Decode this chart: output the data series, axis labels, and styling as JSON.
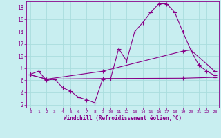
{
  "xlabel": "Windchill (Refroidissement éolien,°C)",
  "xlim": [
    -0.5,
    23.5
  ],
  "ylim": [
    1.5,
    19.0
  ],
  "yticks": [
    2,
    4,
    6,
    8,
    10,
    12,
    14,
    16,
    18
  ],
  "xticks": [
    0,
    1,
    2,
    3,
    4,
    5,
    6,
    7,
    8,
    9,
    10,
    11,
    12,
    13,
    14,
    15,
    16,
    17,
    18,
    19,
    20,
    21,
    22,
    23
  ],
  "bg_color": "#c8eef0",
  "line_color": "#880088",
  "grid_color": "#aadddd",
  "line1_x": [
    0,
    1,
    2,
    3,
    4,
    5,
    6,
    7,
    8,
    9,
    10,
    11,
    12,
    13,
    14,
    15,
    16,
    17,
    18,
    19,
    20,
    21,
    22,
    23
  ],
  "line1_y": [
    7.0,
    7.5,
    6.0,
    6.2,
    4.8,
    4.2,
    3.2,
    2.8,
    2.3,
    6.2,
    6.3,
    11.2,
    9.2,
    14.0,
    15.5,
    17.2,
    18.6,
    18.6,
    17.2,
    14.0,
    11.0,
    8.5,
    7.5,
    6.8
  ],
  "line2_x": [
    0,
    2,
    9,
    19,
    23
  ],
  "line2_y": [
    6.9,
    6.2,
    6.3,
    6.35,
    6.5
  ],
  "line3_x": [
    0,
    2,
    9,
    19,
    20,
    23
  ],
  "line3_y": [
    6.9,
    6.2,
    7.5,
    10.8,
    11.0,
    7.5
  ]
}
